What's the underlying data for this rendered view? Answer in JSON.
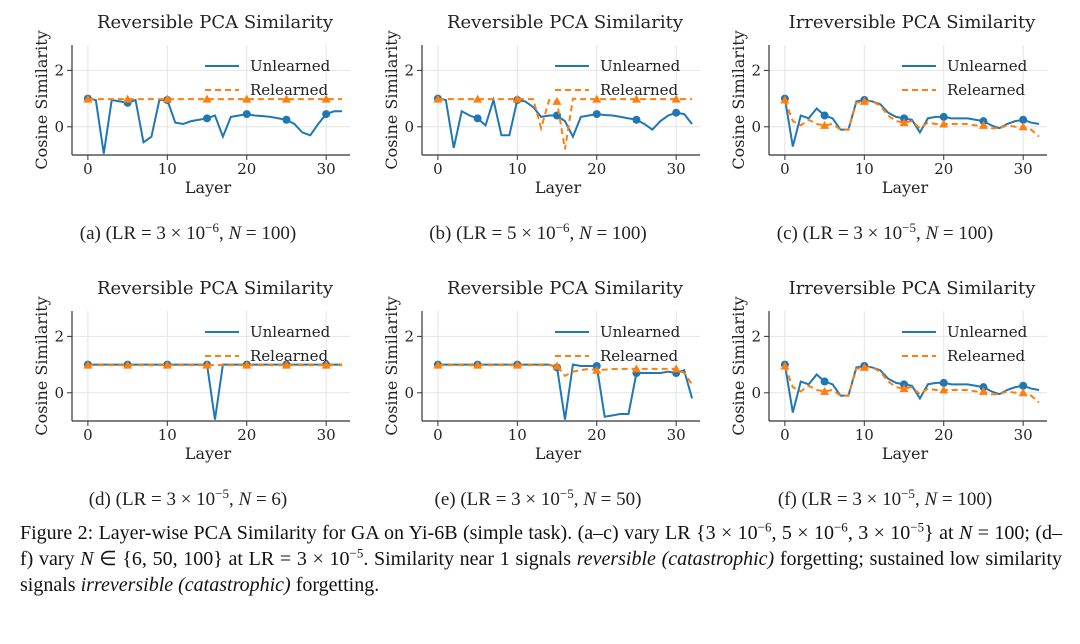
{
  "chart_data": [
    {
      "type": "line",
      "title": "Reversible PCA Similarity",
      "xlabel": "Layer",
      "ylabel": "Cosine Similarity",
      "caption": [
        "(a) (LR = 3 × 10",
        "−6",
        ", ",
        "N",
        " = 100)"
      ],
      "x": [
        0,
        1,
        2,
        3,
        4,
        5,
        6,
        7,
        8,
        9,
        10,
        11,
        12,
        13,
        14,
        15,
        16,
        17,
        18,
        19,
        20,
        21,
        22,
        23,
        24,
        25,
        26,
        27,
        28,
        29,
        30,
        31,
        32
      ],
      "series": [
        {
          "name": "Unlearned",
          "color": "#1f77b4",
          "linestyle": "solid",
          "marker": "circle",
          "values": [
            1.0,
            0.95,
            -0.95,
            0.95,
            0.9,
            0.85,
            0.95,
            -0.55,
            -0.35,
            0.95,
            0.95,
            0.15,
            0.1,
            0.2,
            0.25,
            0.3,
            0.4,
            -0.35,
            0.35,
            0.4,
            0.45,
            0.4,
            0.38,
            0.35,
            0.3,
            0.25,
            0.1,
            -0.2,
            -0.3,
            0.1,
            0.45,
            0.55,
            0.55
          ]
        },
        {
          "name": "Relearned",
          "color": "#ff7f0e",
          "linestyle": "dashed",
          "marker": "triangle",
          "values": [
            0.98,
            0.98,
            0.98,
            0.98,
            0.98,
            0.98,
            0.98,
            0.98,
            0.98,
            0.98,
            0.98,
            0.98,
            0.98,
            0.98,
            0.98,
            0.98,
            0.98,
            0.98,
            0.98,
            0.98,
            0.98,
            0.98,
            0.98,
            0.98,
            0.98,
            0.98,
            0.98,
            0.98,
            0.98,
            0.98,
            0.98,
            0.98,
            0.98
          ]
        }
      ],
      "markevery": 5,
      "xlim": [
        -2,
        33
      ],
      "ylim": [
        -1,
        2.9
      ],
      "xticks": [
        0,
        10,
        20,
        30
      ],
      "yticks": [
        0,
        2
      ],
      "grid": true,
      "legend": "upper right"
    },
    {
      "type": "line",
      "title": "Reversible PCA Similarity",
      "xlabel": "Layer",
      "ylabel": "Cosine Similarity",
      "caption": [
        "(b) (LR = 5 × 10",
        "−6",
        ", ",
        "N",
        " = 100)"
      ],
      "x": [
        0,
        1,
        2,
        3,
        4,
        5,
        6,
        7,
        8,
        9,
        10,
        11,
        12,
        13,
        14,
        15,
        16,
        17,
        18,
        19,
        20,
        21,
        22,
        23,
        24,
        25,
        26,
        27,
        28,
        29,
        30,
        31,
        32
      ],
      "series": [
        {
          "name": "Unlearned",
          "color": "#1f77b4",
          "linestyle": "solid",
          "marker": "circle",
          "values": [
            1.0,
            0.95,
            -0.75,
            0.55,
            0.4,
            0.3,
            0.05,
            0.95,
            -0.3,
            -0.3,
            0.95,
            0.9,
            0.7,
            0.35,
            0.4,
            0.4,
            0.2,
            -0.35,
            0.35,
            0.4,
            0.45,
            0.42,
            0.4,
            0.35,
            0.3,
            0.25,
            0.1,
            -0.1,
            0.2,
            0.4,
            0.5,
            0.45,
            0.1
          ]
        },
        {
          "name": "Relearned",
          "color": "#ff7f0e",
          "linestyle": "dashed",
          "marker": "triangle",
          "values": [
            0.98,
            0.98,
            0.98,
            0.98,
            0.98,
            0.98,
            0.98,
            0.98,
            0.98,
            0.98,
            0.98,
            0.98,
            0.98,
            -0.05,
            0.95,
            0.9,
            -0.8,
            1.0,
            0.98,
            0.98,
            0.98,
            0.98,
            0.98,
            0.98,
            0.98,
            0.98,
            0.98,
            0.98,
            0.98,
            0.98,
            0.98,
            0.98,
            0.98
          ]
        }
      ],
      "markevery": 5,
      "xlim": [
        -2,
        33
      ],
      "ylim": [
        -1,
        2.9
      ],
      "xticks": [
        0,
        10,
        20,
        30
      ],
      "yticks": [
        0,
        2
      ],
      "grid": true,
      "legend": "upper right"
    },
    {
      "type": "line",
      "title": "Irreversible PCA Similarity",
      "xlabel": "Layer",
      "ylabel": "Cosine Similarity",
      "caption": [
        "(c) (LR = 3 × 10",
        "−5",
        ", ",
        "N",
        " = 100)"
      ],
      "x": [
        0,
        1,
        2,
        3,
        4,
        5,
        6,
        7,
        8,
        9,
        10,
        11,
        12,
        13,
        14,
        15,
        16,
        17,
        18,
        19,
        20,
        21,
        22,
        23,
        24,
        25,
        26,
        27,
        28,
        29,
        30,
        31,
        32
      ],
      "series": [
        {
          "name": "Unlearned",
          "color": "#1f77b4",
          "linestyle": "solid",
          "marker": "circle",
          "values": [
            1.0,
            -0.7,
            0.4,
            0.3,
            0.65,
            0.4,
            0.3,
            -0.1,
            -0.1,
            0.9,
            0.95,
            0.9,
            0.8,
            0.5,
            0.35,
            0.3,
            0.25,
            -0.2,
            0.3,
            0.35,
            0.35,
            0.3,
            0.3,
            0.3,
            0.25,
            0.2,
            0.05,
            -0.05,
            0.1,
            0.2,
            0.25,
            0.15,
            0.1
          ]
        },
        {
          "name": "Relearned",
          "color": "#ff7f0e",
          "linestyle": "dashed",
          "marker": "triangle",
          "values": [
            0.95,
            0.2,
            0.05,
            0.25,
            0.1,
            0.05,
            0.1,
            -0.1,
            -0.1,
            0.85,
            0.9,
            0.9,
            0.75,
            0.4,
            0.2,
            0.15,
            0.2,
            -0.05,
            0.15,
            0.1,
            0.1,
            0.1,
            0.1,
            0.1,
            0.05,
            0.05,
            -0.05,
            -0.05,
            0.05,
            0.0,
            0.0,
            -0.1,
            -0.35
          ]
        }
      ],
      "markevery": 5,
      "xlim": [
        -2,
        33
      ],
      "ylim": [
        -1,
        2.9
      ],
      "xticks": [
        0,
        10,
        20,
        30
      ],
      "yticks": [
        0,
        2
      ],
      "grid": true,
      "legend": "upper right"
    },
    {
      "type": "line",
      "title": "Reversible PCA Similarity",
      "xlabel": "Layer",
      "ylabel": "Cosine Similarity",
      "caption": [
        "(d) (LR = 3 × 10",
        "−5",
        ", ",
        "N",
        " = 6)"
      ],
      "x": [
        0,
        1,
        2,
        3,
        4,
        5,
        6,
        7,
        8,
        9,
        10,
        11,
        12,
        13,
        14,
        15,
        16,
        17,
        18,
        19,
        20,
        21,
        22,
        23,
        24,
        25,
        26,
        27,
        28,
        29,
        30,
        31,
        32
      ],
      "series": [
        {
          "name": "Unlearned",
          "color": "#1f77b4",
          "linestyle": "solid",
          "marker": "circle",
          "values": [
            1.0,
            1.0,
            1.0,
            1.0,
            1.0,
            1.0,
            1.0,
            1.0,
            1.0,
            1.0,
            1.0,
            1.0,
            1.0,
            1.0,
            1.0,
            1.0,
            -0.95,
            1.0,
            1.0,
            1.0,
            1.0,
            1.0,
            1.0,
            1.0,
            1.0,
            1.0,
            1.0,
            1.0,
            1.0,
            1.0,
            1.0,
            1.0,
            1.0
          ]
        },
        {
          "name": "Relearned",
          "color": "#ff7f0e",
          "linestyle": "dashed",
          "marker": "triangle",
          "values": [
            0.98,
            0.98,
            0.98,
            0.98,
            0.98,
            0.98,
            0.98,
            0.98,
            0.98,
            0.98,
            0.98,
            0.98,
            0.98,
            0.98,
            0.98,
            0.98,
            0.98,
            0.98,
            0.98,
            0.98,
            0.98,
            0.98,
            0.98,
            0.98,
            0.98,
            0.98,
            0.98,
            0.98,
            0.98,
            0.98,
            0.98,
            0.98,
            0.98
          ]
        }
      ],
      "markevery": 5,
      "xlim": [
        -2,
        33
      ],
      "ylim": [
        -1,
        2.9
      ],
      "xticks": [
        0,
        10,
        20,
        30
      ],
      "yticks": [
        0,
        2
      ],
      "grid": true,
      "legend": "upper right"
    },
    {
      "type": "line",
      "title": "Reversible PCA Similarity",
      "xlabel": "Layer",
      "ylabel": "Cosine Similarity",
      "caption": [
        "(e) (LR = 3 × 10",
        "−5",
        ", ",
        "N",
        " = 50)"
      ],
      "x": [
        0,
        1,
        2,
        3,
        4,
        5,
        6,
        7,
        8,
        9,
        10,
        11,
        12,
        13,
        14,
        15,
        16,
        17,
        18,
        19,
        20,
        21,
        22,
        23,
        24,
        25,
        26,
        27,
        28,
        29,
        30,
        31,
        32
      ],
      "series": [
        {
          "name": "Unlearned",
          "color": "#1f77b4",
          "linestyle": "solid",
          "marker": "circle",
          "values": [
            1.0,
            1.0,
            1.0,
            1.0,
            1.0,
            1.0,
            1.0,
            1.0,
            1.0,
            1.0,
            1.0,
            1.0,
            1.0,
            1.0,
            1.0,
            0.9,
            -0.95,
            1.0,
            0.95,
            0.95,
            0.95,
            -0.85,
            -0.8,
            -0.75,
            -0.75,
            0.7,
            0.7,
            0.7,
            0.7,
            0.75,
            0.7,
            0.8,
            -0.2
          ]
        },
        {
          "name": "Relearned",
          "color": "#ff7f0e",
          "linestyle": "dashed",
          "marker": "triangle",
          "values": [
            0.98,
            0.98,
            0.98,
            0.98,
            0.98,
            0.98,
            0.98,
            0.98,
            0.98,
            0.98,
            0.98,
            0.98,
            0.98,
            0.98,
            0.98,
            0.95,
            0.6,
            0.75,
            0.8,
            0.85,
            0.8,
            0.82,
            0.84,
            0.85,
            0.85,
            0.85,
            0.85,
            0.85,
            0.85,
            0.85,
            0.85,
            0.7,
            0.3
          ]
        }
      ],
      "markevery": 5,
      "xlim": [
        -2,
        33
      ],
      "ylim": [
        -1,
        2.9
      ],
      "xticks": [
        0,
        10,
        20,
        30
      ],
      "yticks": [
        0,
        2
      ],
      "grid": true,
      "legend": "upper right"
    },
    {
      "type": "line",
      "title": "Irreversible PCA Similarity",
      "xlabel": "Layer",
      "ylabel": "Cosine Similarity",
      "caption": [
        "(f) (LR = 3 × 10",
        "−5",
        ", ",
        "N",
        " = 100)"
      ],
      "x": [
        0,
        1,
        2,
        3,
        4,
        5,
        6,
        7,
        8,
        9,
        10,
        11,
        12,
        13,
        14,
        15,
        16,
        17,
        18,
        19,
        20,
        21,
        22,
        23,
        24,
        25,
        26,
        27,
        28,
        29,
        30,
        31,
        32
      ],
      "series": [
        {
          "name": "Unlearned",
          "color": "#1f77b4",
          "linestyle": "solid",
          "marker": "circle",
          "values": [
            1.0,
            -0.7,
            0.4,
            0.3,
            0.65,
            0.4,
            0.3,
            -0.1,
            -0.1,
            0.9,
            0.95,
            0.9,
            0.8,
            0.5,
            0.35,
            0.3,
            0.25,
            -0.2,
            0.3,
            0.35,
            0.35,
            0.3,
            0.3,
            0.3,
            0.25,
            0.2,
            0.05,
            -0.05,
            0.1,
            0.2,
            0.25,
            0.15,
            0.1
          ]
        },
        {
          "name": "Relearned",
          "color": "#ff7f0e",
          "linestyle": "dashed",
          "marker": "triangle",
          "values": [
            0.95,
            0.2,
            0.05,
            0.25,
            0.1,
            0.05,
            0.1,
            -0.1,
            -0.1,
            0.85,
            0.9,
            0.9,
            0.75,
            0.4,
            0.2,
            0.15,
            0.2,
            -0.05,
            0.15,
            0.1,
            0.1,
            0.1,
            0.1,
            0.1,
            0.05,
            0.05,
            -0.05,
            -0.05,
            0.05,
            0.0,
            0.0,
            -0.1,
            -0.35
          ]
        }
      ],
      "markevery": 5,
      "xlim": [
        -2,
        33
      ],
      "ylim": [
        -1,
        2.9
      ],
      "xticks": [
        0,
        10,
        20,
        30
      ],
      "yticks": [
        0,
        2
      ],
      "grid": true,
      "legend": "upper right"
    }
  ],
  "figure_caption": [
    "Figure 2: Layer-wise PCA Similarity for GA on Yi-6B (simple task). (a–c) vary LR {3 × 10",
    "−6",
    ", 5 × 10",
    "−6",
    ", 3 × 10",
    "−5",
    "} at ",
    "N",
    " = 100; (d–f) vary ",
    "N",
    " ∈ {6, 50, 100} at LR = 3 × 10",
    "−5",
    ". Similarity near 1 signals ",
    "reversible (catastrophic)",
    " forgetting; sustained low similarity signals ",
    "irreversible (catastrophic)",
    " forgetting."
  ]
}
